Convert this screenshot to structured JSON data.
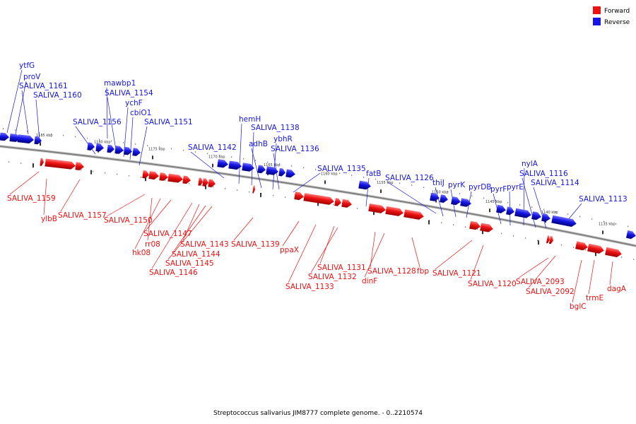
{
  "colors": {
    "forward": "#ee1111",
    "reverse": "#1515e6",
    "backbone": "#7f7f7f"
  },
  "legend": [
    {
      "label": "Forward",
      "color": "#ee1111"
    },
    {
      "label": "Reverse",
      "color": "#1515e6"
    }
  ],
  "caption": "Streptococcus salivarius JIM8777 complete genome. - 0..2210574",
  "ticks": [
    "1185 kbp",
    "1180 kbp",
    "1175 kbp",
    "1170 kbp",
    "1165 kbp",
    "1160 kbp",
    "1155 kbp",
    "1150 kbp",
    "1145 kbp",
    "1140 kbp",
    "1135 kbp"
  ],
  "reverse_labels": [
    "ytfG",
    "proV",
    "SALIVA_1161",
    "SALIVA_1160",
    "mawbp1",
    "SALIVA_1154",
    "ychF",
    "cbiO1",
    "SALIVA_1156",
    "SALIVA_1151",
    "SALIVA_1142",
    "hemH",
    "SALIVA_1138",
    "adhB",
    "ybhR",
    "SALIVA_1136",
    "SALIVA_1135",
    "fatB",
    "SALIVA_1126",
    "thiJ",
    "pyrK",
    "pyrDB",
    "pyrF",
    "pyrE",
    "nylA",
    "SALIVA_1116",
    "SALIVA_1114",
    "SALIVA_1113"
  ],
  "forward_labels": [
    "SALIVA_1159",
    "ylbB",
    "SALIVA_1157",
    "SALIVA_1150",
    "rr08",
    "hk08",
    "SALIVA_1147",
    "SALIVA_1143",
    "SALIVA_1144",
    "SALIVA_1145",
    "SALIVA_1146",
    "SALIVA_1139",
    "ppaX",
    "SALIVA_1131",
    "SALIVA_1132",
    "SALIVA_1133",
    "SALIVA_1128",
    "dinF",
    "fbp",
    "SALIVA_1121",
    "SALIVA_1120",
    "SALIVA_2093",
    "SALIVA_2092",
    "trmE",
    "bglC",
    "dagA"
  ]
}
